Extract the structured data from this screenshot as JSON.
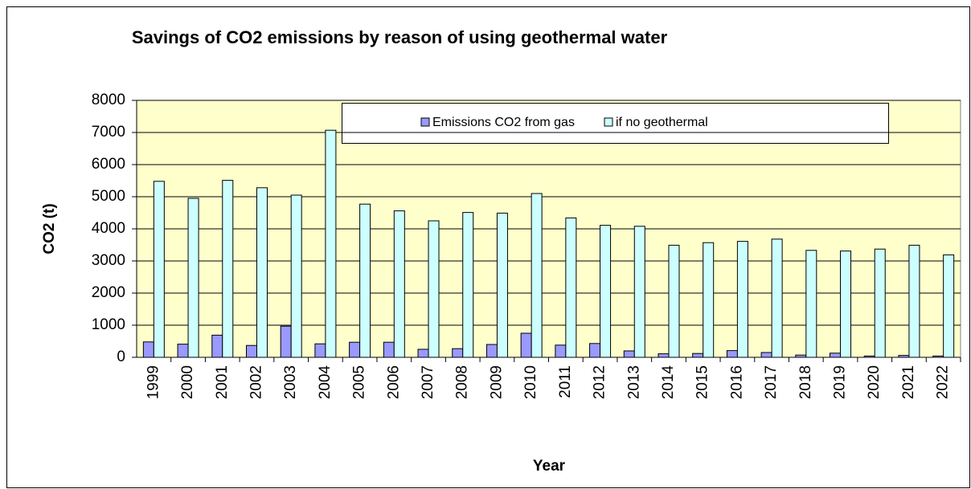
{
  "chart_data": {
    "type": "bar",
    "title": "Savings of CO2 emissions by reason of using geothermal water",
    "x_label": "Year",
    "y_label": "CO2 (t)",
    "categories": [
      "1999",
      "2000",
      "2001",
      "2002",
      "2003",
      "2004",
      "2005",
      "2006",
      "2007",
      "2008",
      "2009",
      "2010",
      "2011",
      "2012",
      "2013",
      "2014",
      "2015",
      "2016",
      "2017",
      "2018",
      "2019",
      "2020",
      "2021",
      "2022"
    ],
    "series": [
      {
        "name": "Emissions CO2 from gas",
        "color": "#9999ff",
        "values": [
          480,
          410,
          690,
          370,
          970,
          420,
          470,
          470,
          250,
          270,
          400,
          750,
          380,
          430,
          200,
          110,
          120,
          210,
          150,
          70,
          130,
          40,
          60,
          40
        ]
      },
      {
        "name": "if no geothermal",
        "color": "#ccffff",
        "values": [
          5480,
          4950,
          5510,
          5280,
          5050,
          7070,
          4770,
          4560,
          4250,
          4510,
          4490,
          5100,
          4340,
          4110,
          4080,
          3490,
          3570,
          3610,
          3680,
          3330,
          3310,
          3370,
          3490,
          3190
        ]
      }
    ],
    "ylim": [
      0,
      8000
    ],
    "yticks": [
      0,
      1000,
      2000,
      3000,
      4000,
      5000,
      6000,
      7000,
      8000
    ],
    "grid": true,
    "legend": "top"
  }
}
